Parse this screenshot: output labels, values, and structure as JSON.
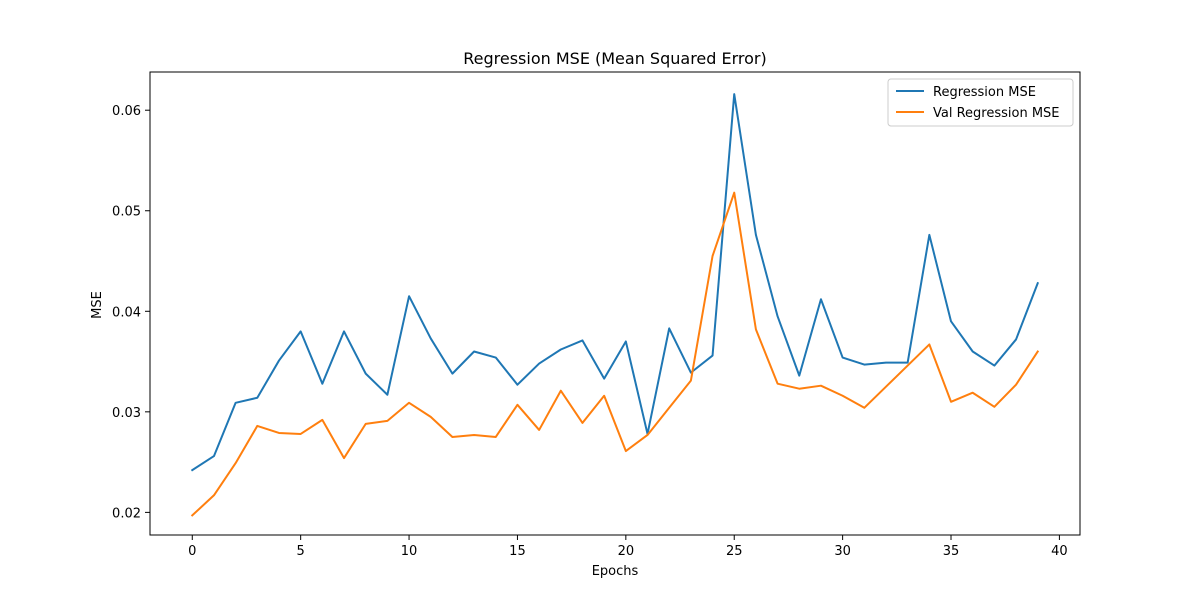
{
  "chart_data": {
    "type": "line",
    "title": "Regression MSE (Mean Squared Error)",
    "xlabel": "Epochs",
    "ylabel": "MSE",
    "xlim": [
      -1.95,
      40.95
    ],
    "ylim": [
      0.01775,
      0.0638
    ],
    "xticks": [
      0,
      5,
      10,
      15,
      20,
      25,
      30,
      35,
      40
    ],
    "yticks": [
      0.02,
      0.03,
      0.04,
      0.05,
      0.06
    ],
    "ytick_labels": [
      "0.02",
      "0.03",
      "0.04",
      "0.05",
      "0.06"
    ],
    "grid": false,
    "legend_position": "top-right",
    "x": [
      0,
      1,
      2,
      3,
      4,
      5,
      6,
      7,
      8,
      9,
      10,
      11,
      12,
      13,
      14,
      15,
      16,
      17,
      18,
      19,
      20,
      21,
      22,
      23,
      24,
      25,
      26,
      27,
      28,
      29,
      30,
      31,
      32,
      33,
      34,
      35,
      36,
      37,
      38,
      39
    ],
    "series": [
      {
        "name": "Regression MSE",
        "color": "#1f77b4",
        "values": [
          0.0242,
          0.0256,
          0.0309,
          0.0314,
          0.0351,
          0.038,
          0.0328,
          0.038,
          0.0338,
          0.0317,
          0.0415,
          0.0373,
          0.0338,
          0.036,
          0.0354,
          0.0327,
          0.0348,
          0.0362,
          0.0371,
          0.0333,
          0.037,
          0.0278,
          0.0383,
          0.0339,
          0.0356,
          0.0616,
          0.0476,
          0.0395,
          0.0336,
          0.0412,
          0.0354,
          0.0347,
          0.0349,
          0.0349,
          0.0476,
          0.039,
          0.036,
          0.0346,
          0.0372,
          0.0428
        ]
      },
      {
        "name": "Val Regression MSE",
        "color": "#ff7f0e",
        "values": [
          0.0197,
          0.0217,
          0.0249,
          0.0286,
          0.0279,
          0.0278,
          0.0292,
          0.0254,
          0.0288,
          0.0291,
          0.0309,
          0.0295,
          0.0275,
          0.0277,
          0.0275,
          0.0307,
          0.0282,
          0.0321,
          0.0289,
          0.0316,
          0.0261,
          0.0277,
          0.0304,
          0.0331,
          0.0455,
          0.0518,
          0.0382,
          0.0328,
          0.0323,
          0.0326,
          0.0316,
          0.0304,
          0.0325,
          0.0346,
          0.0367,
          0.031,
          0.0319,
          0.0305,
          0.0327,
          0.036
        ]
      }
    ]
  }
}
